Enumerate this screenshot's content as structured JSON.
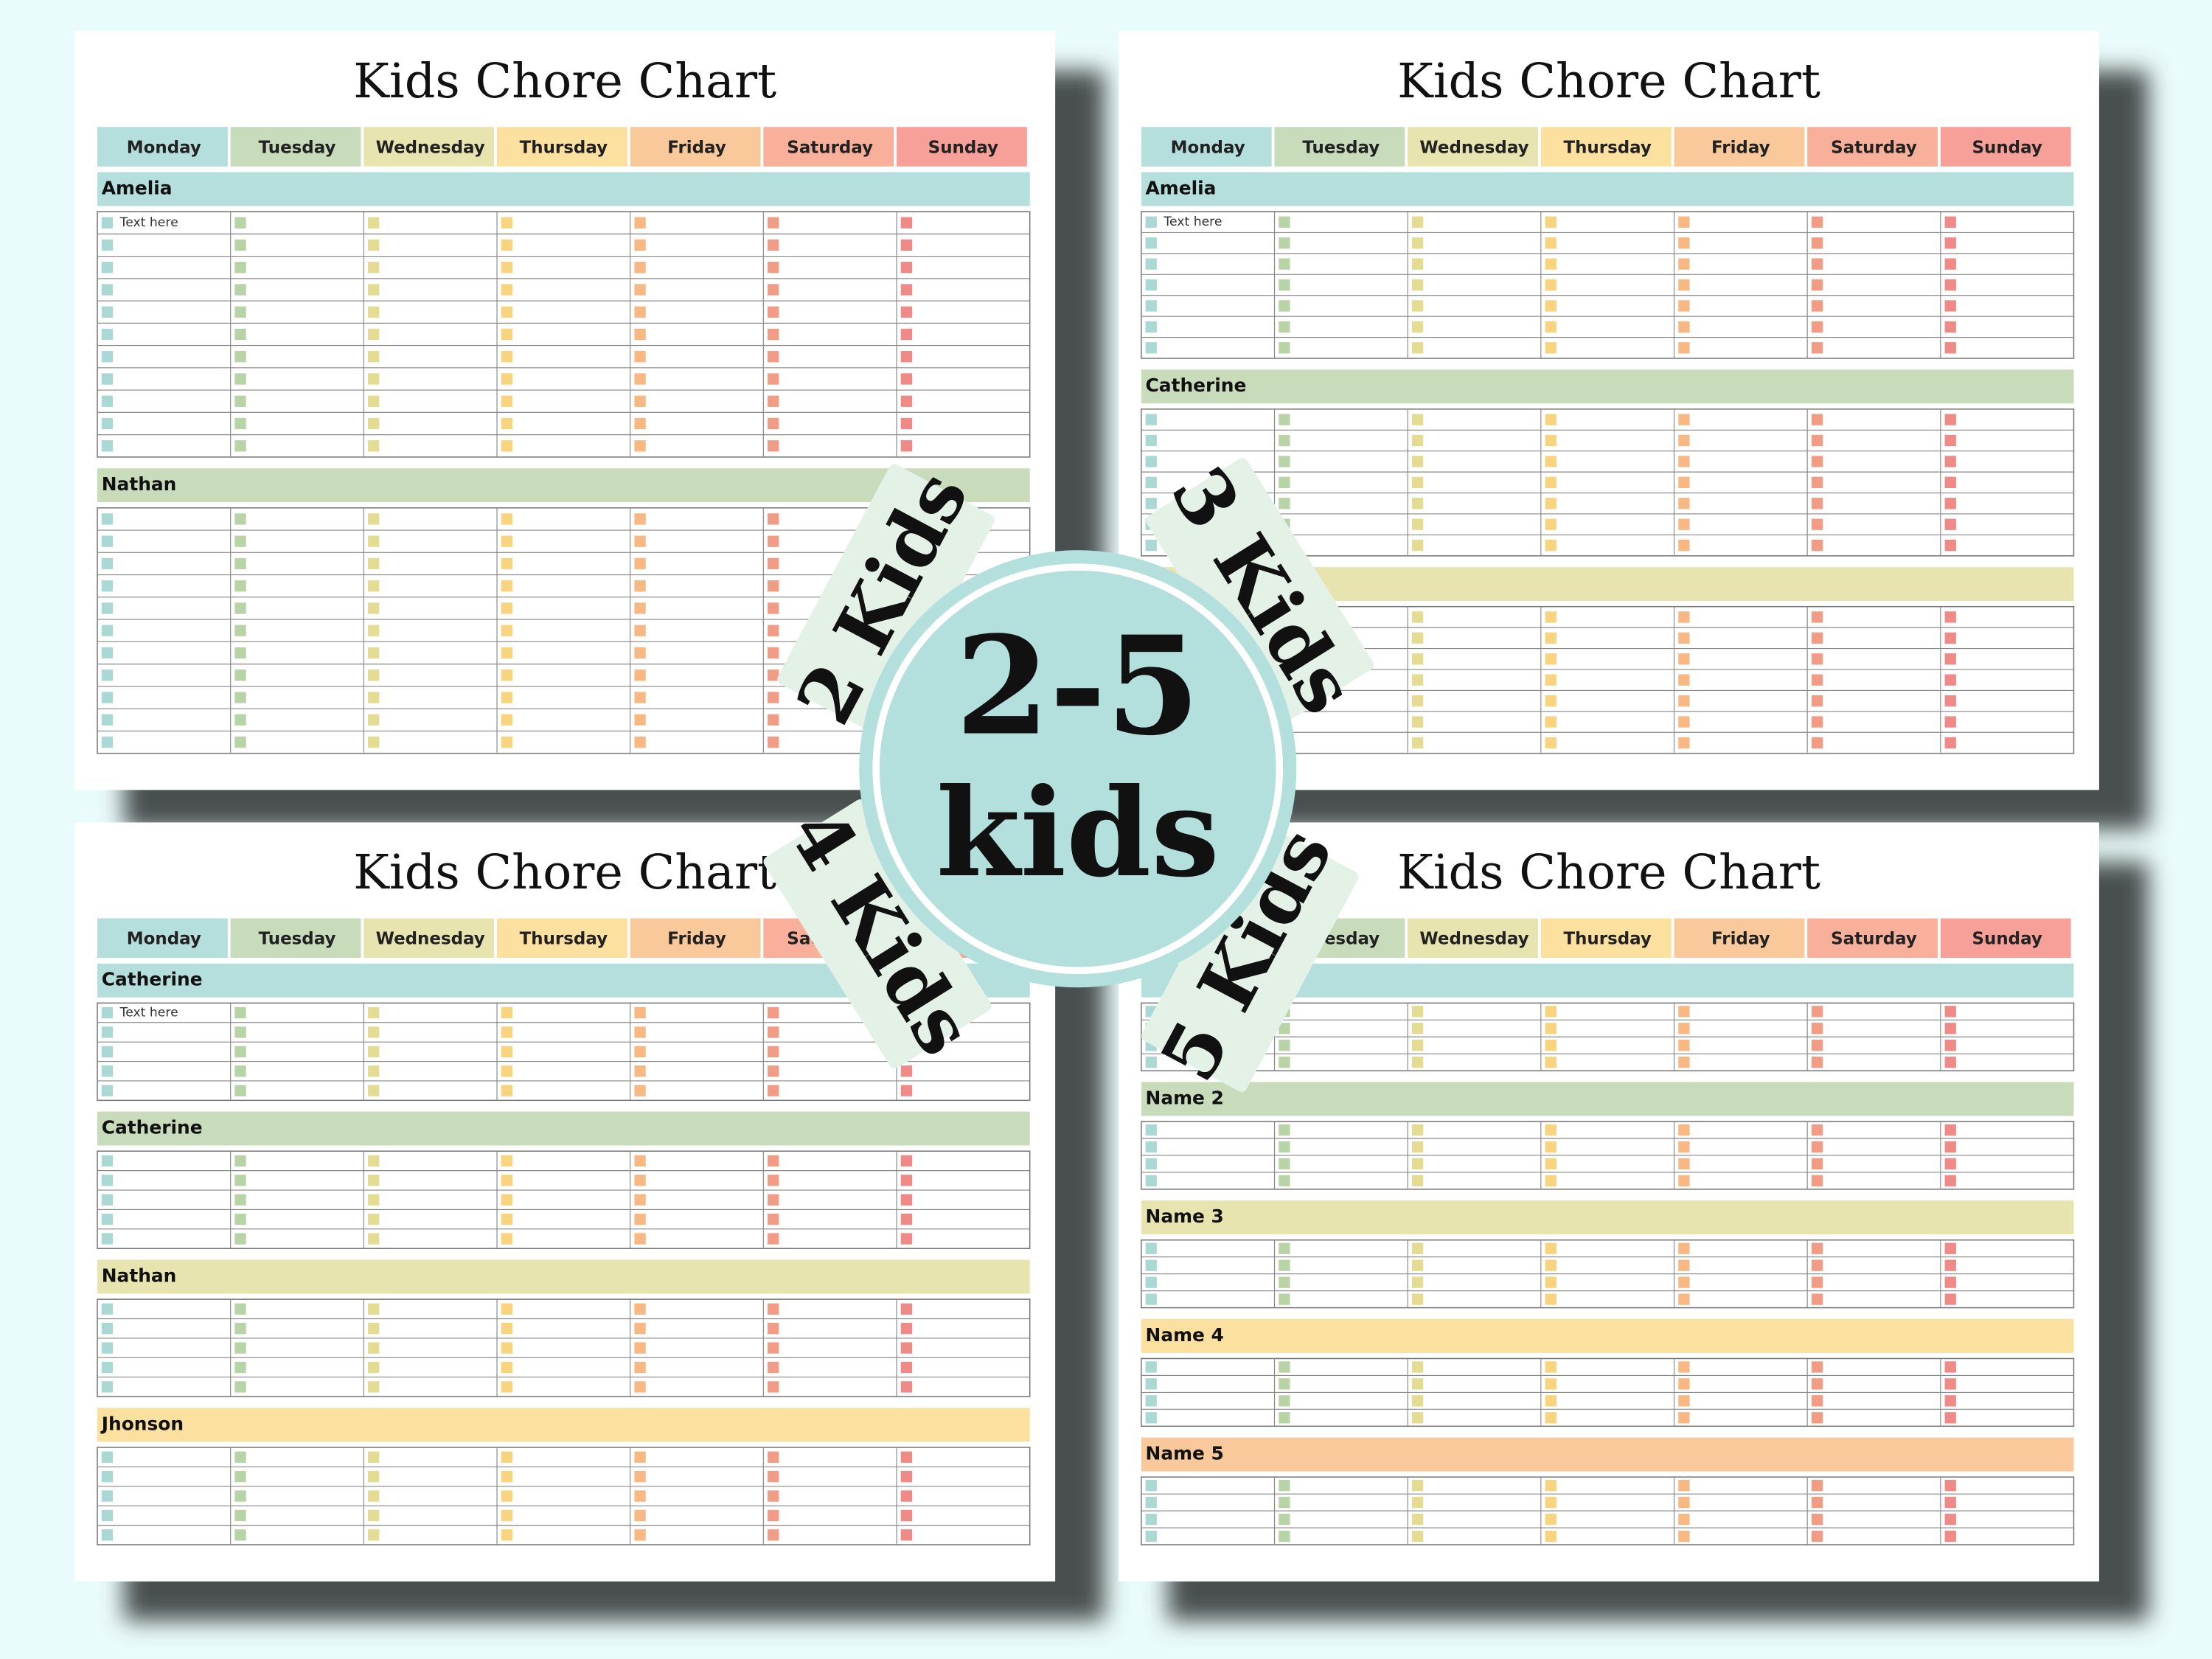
{
  "title": "Kids Chore Chart",
  "days": [
    "Monday",
    "Tuesday",
    "Wednesday",
    "Thursday",
    "Friday",
    "Saturday",
    "Sunday"
  ],
  "panels": [
    {
      "kids": [
        {
          "name": "Amelia",
          "sample": "Text here"
        },
        {
          "name": "Nathan"
        }
      ]
    },
    {
      "kids": [
        {
          "name": "Amelia",
          "sample": "Text here"
        },
        {
          "name": "Catherine"
        },
        {
          "name": null
        }
      ]
    },
    {
      "kids": [
        {
          "name": "Catherine",
          "sample": "Text here"
        },
        {
          "name": "Catherine"
        },
        {
          "name": "Nathan"
        },
        {
          "name": "Jhonson"
        }
      ]
    },
    {
      "kids": [
        {
          "name": null
        },
        {
          "name": "Name 2"
        },
        {
          "name": "Name 3"
        },
        {
          "name": "Name 4"
        },
        {
          "name": "Name 5"
        }
      ]
    }
  ],
  "badges": [
    "2 Kids",
    "3 Kids",
    "4 Kids",
    "5 Kids"
  ],
  "center": {
    "line1": "2-5",
    "line2": "kids"
  }
}
